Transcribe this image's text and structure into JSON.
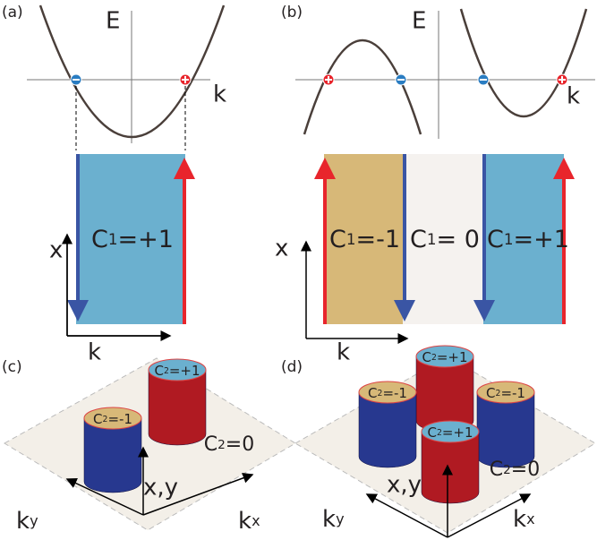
{
  "panel_a": {
    "label": "(a)",
    "energy_axis": "E",
    "momentum_axis": "k",
    "strip_x_axis": "x",
    "strip_k_axis": "k",
    "regions": [
      {
        "symbol": "C",
        "sub": "1",
        "rest": "=+1"
      }
    ]
  },
  "panel_b": {
    "label": "(b)",
    "energy_axis": "E",
    "momentum_axis": "k",
    "strip_x_axis": "x",
    "strip_k_axis": "k",
    "regions": [
      {
        "symbol": "C",
        "sub": "1",
        "rest": "=-1"
      },
      {
        "symbol": "C",
        "sub": "1",
        "rest": "= 0"
      },
      {
        "symbol": "C",
        "sub": "1",
        "rest": "=+1"
      }
    ]
  },
  "panel_c": {
    "label": "(c)",
    "vertical_axis": "x,y",
    "ky": {
      "base": "k",
      "sub": "y"
    },
    "kx": {
      "base": "k",
      "sub": "x"
    },
    "cylinders": [
      {
        "symbol": "C",
        "sub": "2",
        "rest": "=+1"
      },
      {
        "symbol": "C",
        "sub": "2",
        "rest": "=-1"
      }
    ],
    "background": {
      "symbol": "C",
      "sub": "2",
      "rest": "=0"
    }
  },
  "panel_d": {
    "label": "(d)",
    "vertical_axis": "x,y",
    "ky": {
      "base": "k",
      "sub": "y"
    },
    "kx": {
      "base": "k",
      "sub": "x"
    },
    "cylinders": [
      {
        "symbol": "C",
        "sub": "2",
        "rest": "=+1"
      },
      {
        "symbol": "C",
        "sub": "2",
        "rest": "=-1"
      },
      {
        "symbol": "C",
        "sub": "2",
        "rest": "=-1"
      },
      {
        "symbol": "C",
        "sub": "2",
        "rest": "=+1"
      }
    ],
    "background": {
      "symbol": "C",
      "sub": "2",
      "rest": "=0"
    }
  }
}
